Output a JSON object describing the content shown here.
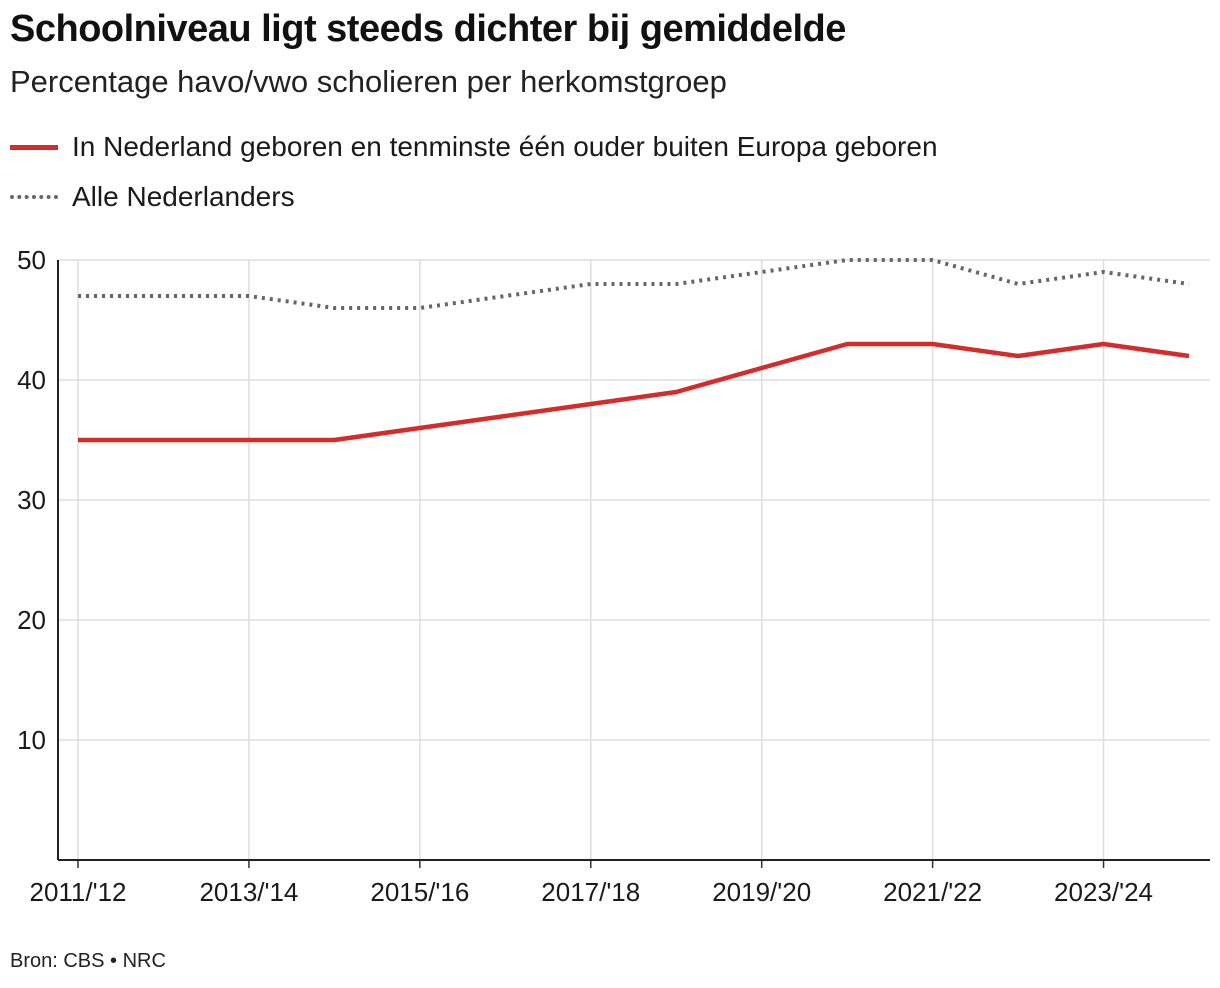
{
  "header": {
    "title": "Schoolniveau ligt steeds dichter bij gemiddelde",
    "subtitle": "Percentage havo/vwo scholieren per herkomstgroep"
  },
  "legend": [
    {
      "label": "In Nederland geboren en tenminste één ouder buiten Europa geboren",
      "style": "solid",
      "color": "#d62b2b"
    },
    {
      "label": "Alle Nederlanders",
      "style": "dotted",
      "color": "#666666"
    }
  ],
  "chart_data": {
    "type": "line",
    "x": [
      "2011/'12",
      "2012/'13",
      "2013/'14",
      "2014/'15",
      "2015/'16",
      "2016/'17",
      "2017/'18",
      "2018/'19",
      "2019/'20",
      "2020/'21",
      "2021/'22",
      "2022/'23",
      "2023/'24",
      "2024/'25"
    ],
    "xticks": [
      "2011/'12",
      "2013/'14",
      "2015/'16",
      "2017/'18",
      "2019/'20",
      "2021/'22",
      "2023/'24"
    ],
    "yticks": [
      10,
      20,
      30,
      40,
      50
    ],
    "ylim": [
      0,
      50
    ],
    "grid": true,
    "series": [
      {
        "name": "In Nederland geboren en tenminste één ouder buiten Europa geboren",
        "color": "#d62b2b",
        "style": "solid",
        "values": [
          35,
          35,
          35,
          35,
          36,
          37,
          38,
          39,
          41,
          43,
          43,
          42,
          43,
          42
        ]
      },
      {
        "name": "Alle Nederlanders",
        "color": "#666666",
        "style": "dotted",
        "values": [
          47,
          47,
          47,
          46,
          46,
          47,
          48,
          48,
          49,
          50,
          50,
          48,
          49,
          48
        ]
      }
    ]
  },
  "footer": {
    "source": "Bron: CBS • NRC"
  }
}
